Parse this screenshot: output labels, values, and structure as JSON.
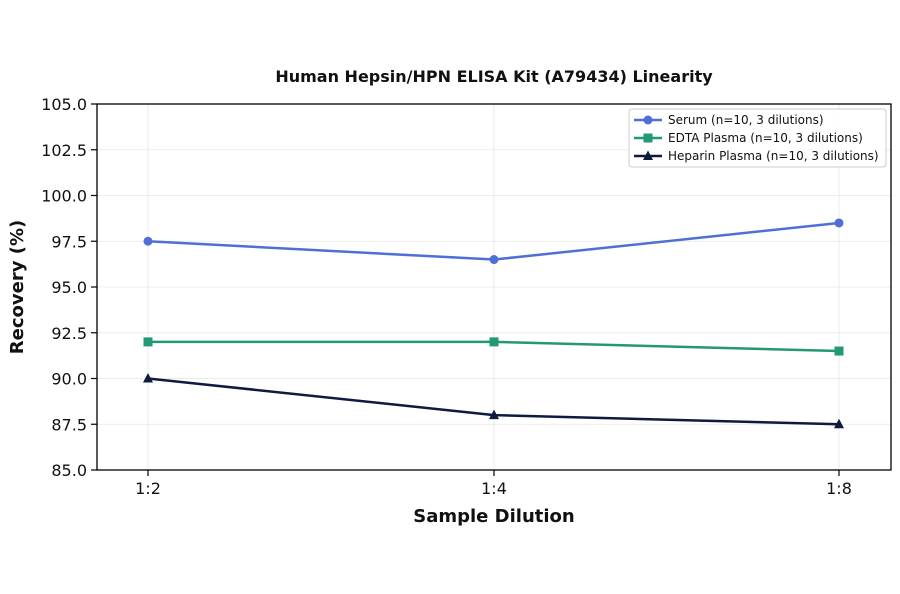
{
  "chart_data": {
    "type": "line",
    "title": "Human Hepsin/HPN ELISA Kit (A79434) Linearity",
    "xlabel": "Sample Dilution",
    "ylabel": "Recovery (%)",
    "categories": [
      "1:2",
      "1:4",
      "1:8"
    ],
    "ylim": [
      85.0,
      105.0
    ],
    "yticks": [
      "85.0",
      "87.5",
      "90.0",
      "92.5",
      "95.0",
      "97.5",
      "100.0",
      "102.5",
      "105.0"
    ],
    "grid": true,
    "legend_position": "top-right",
    "series": [
      {
        "name": "Serum (n=10, 3 dilutions)",
        "values": [
          97.5,
          96.5,
          98.5
        ],
        "color": "#4f6fd6",
        "marker": "circle"
      },
      {
        "name": "EDTA Plasma (n=10, 3 dilutions)",
        "values": [
          92.0,
          92.0,
          91.5
        ],
        "color": "#229974",
        "marker": "square"
      },
      {
        "name": "Heparin Plasma (n=10, 3 dilutions)",
        "values": [
          90.0,
          88.0,
          87.5
        ],
        "color": "#0e1a3f",
        "marker": "triangle"
      }
    ]
  }
}
